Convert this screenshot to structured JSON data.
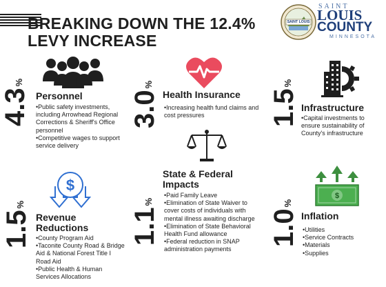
{
  "header": {
    "title": "BREAKING DOWN THE 12.4% LEVY INCREASE",
    "logo": {
      "seal_text": "SAINT LOUIS",
      "word_saint": "SAINT",
      "word_louis": "LOUIS",
      "word_county": "COUNTY",
      "word_state": "MINNESOTA"
    }
  },
  "sections": {
    "personnel": {
      "percent": "4.3",
      "heading": "Personnel",
      "icon": "people-group-icon",
      "bullets": [
        "Public safety investments, including Arrowhead Regional Corrections & Sheriff's Office personnel",
        "Competitive wages to support service delivery"
      ]
    },
    "health": {
      "percent": "3.0",
      "heading": "Health Insurance",
      "icon": "heart-pulse-icon",
      "bullets": [
        "Increasing health fund claims and cost pressures"
      ]
    },
    "infrastructure": {
      "percent": "1.5",
      "heading": "Infrastructure",
      "icon": "building-gear-icon",
      "bullets": [
        "Capital investments to ensure sustainability of County's infrastructure"
      ]
    },
    "revenue": {
      "percent": "1.5",
      "heading": "Revenue Reductions",
      "icon": "dollar-down-arrows-icon",
      "bullets": [
        "County Program Aid",
        "Taconite County Road & Bridge Aid & National Forest Title I Road Aid",
        "Public Health & Human Services Allocations"
      ]
    },
    "state": {
      "percent": "1.1",
      "heading": "State & Federal Impacts",
      "icon": "scales-icon",
      "bullets": [
        "Paid Family Leave",
        "Elimination of State Waiver to cover costs of individuals with mental illness awaiting discharge",
        "Elimination of State Behavioral Health Fund allowance",
        "Federal reduction in SNAP administration payments"
      ]
    },
    "inflation": {
      "percent": "1.0",
      "heading": "Inflation",
      "icon": "money-arrows-up-icon",
      "bullets": [
        "Utilities",
        "Service Contracts",
        "Materials",
        "Supplies"
      ]
    }
  },
  "percent_symbol": "%",
  "colors": {
    "text": "#1f1f1f",
    "heart": "#ea4b5e",
    "money": "#4caf50",
    "arrows": "#3d8f3f",
    "revenue_blue": "#2f6fd1",
    "logo_blue": "#1f3f7a"
  }
}
